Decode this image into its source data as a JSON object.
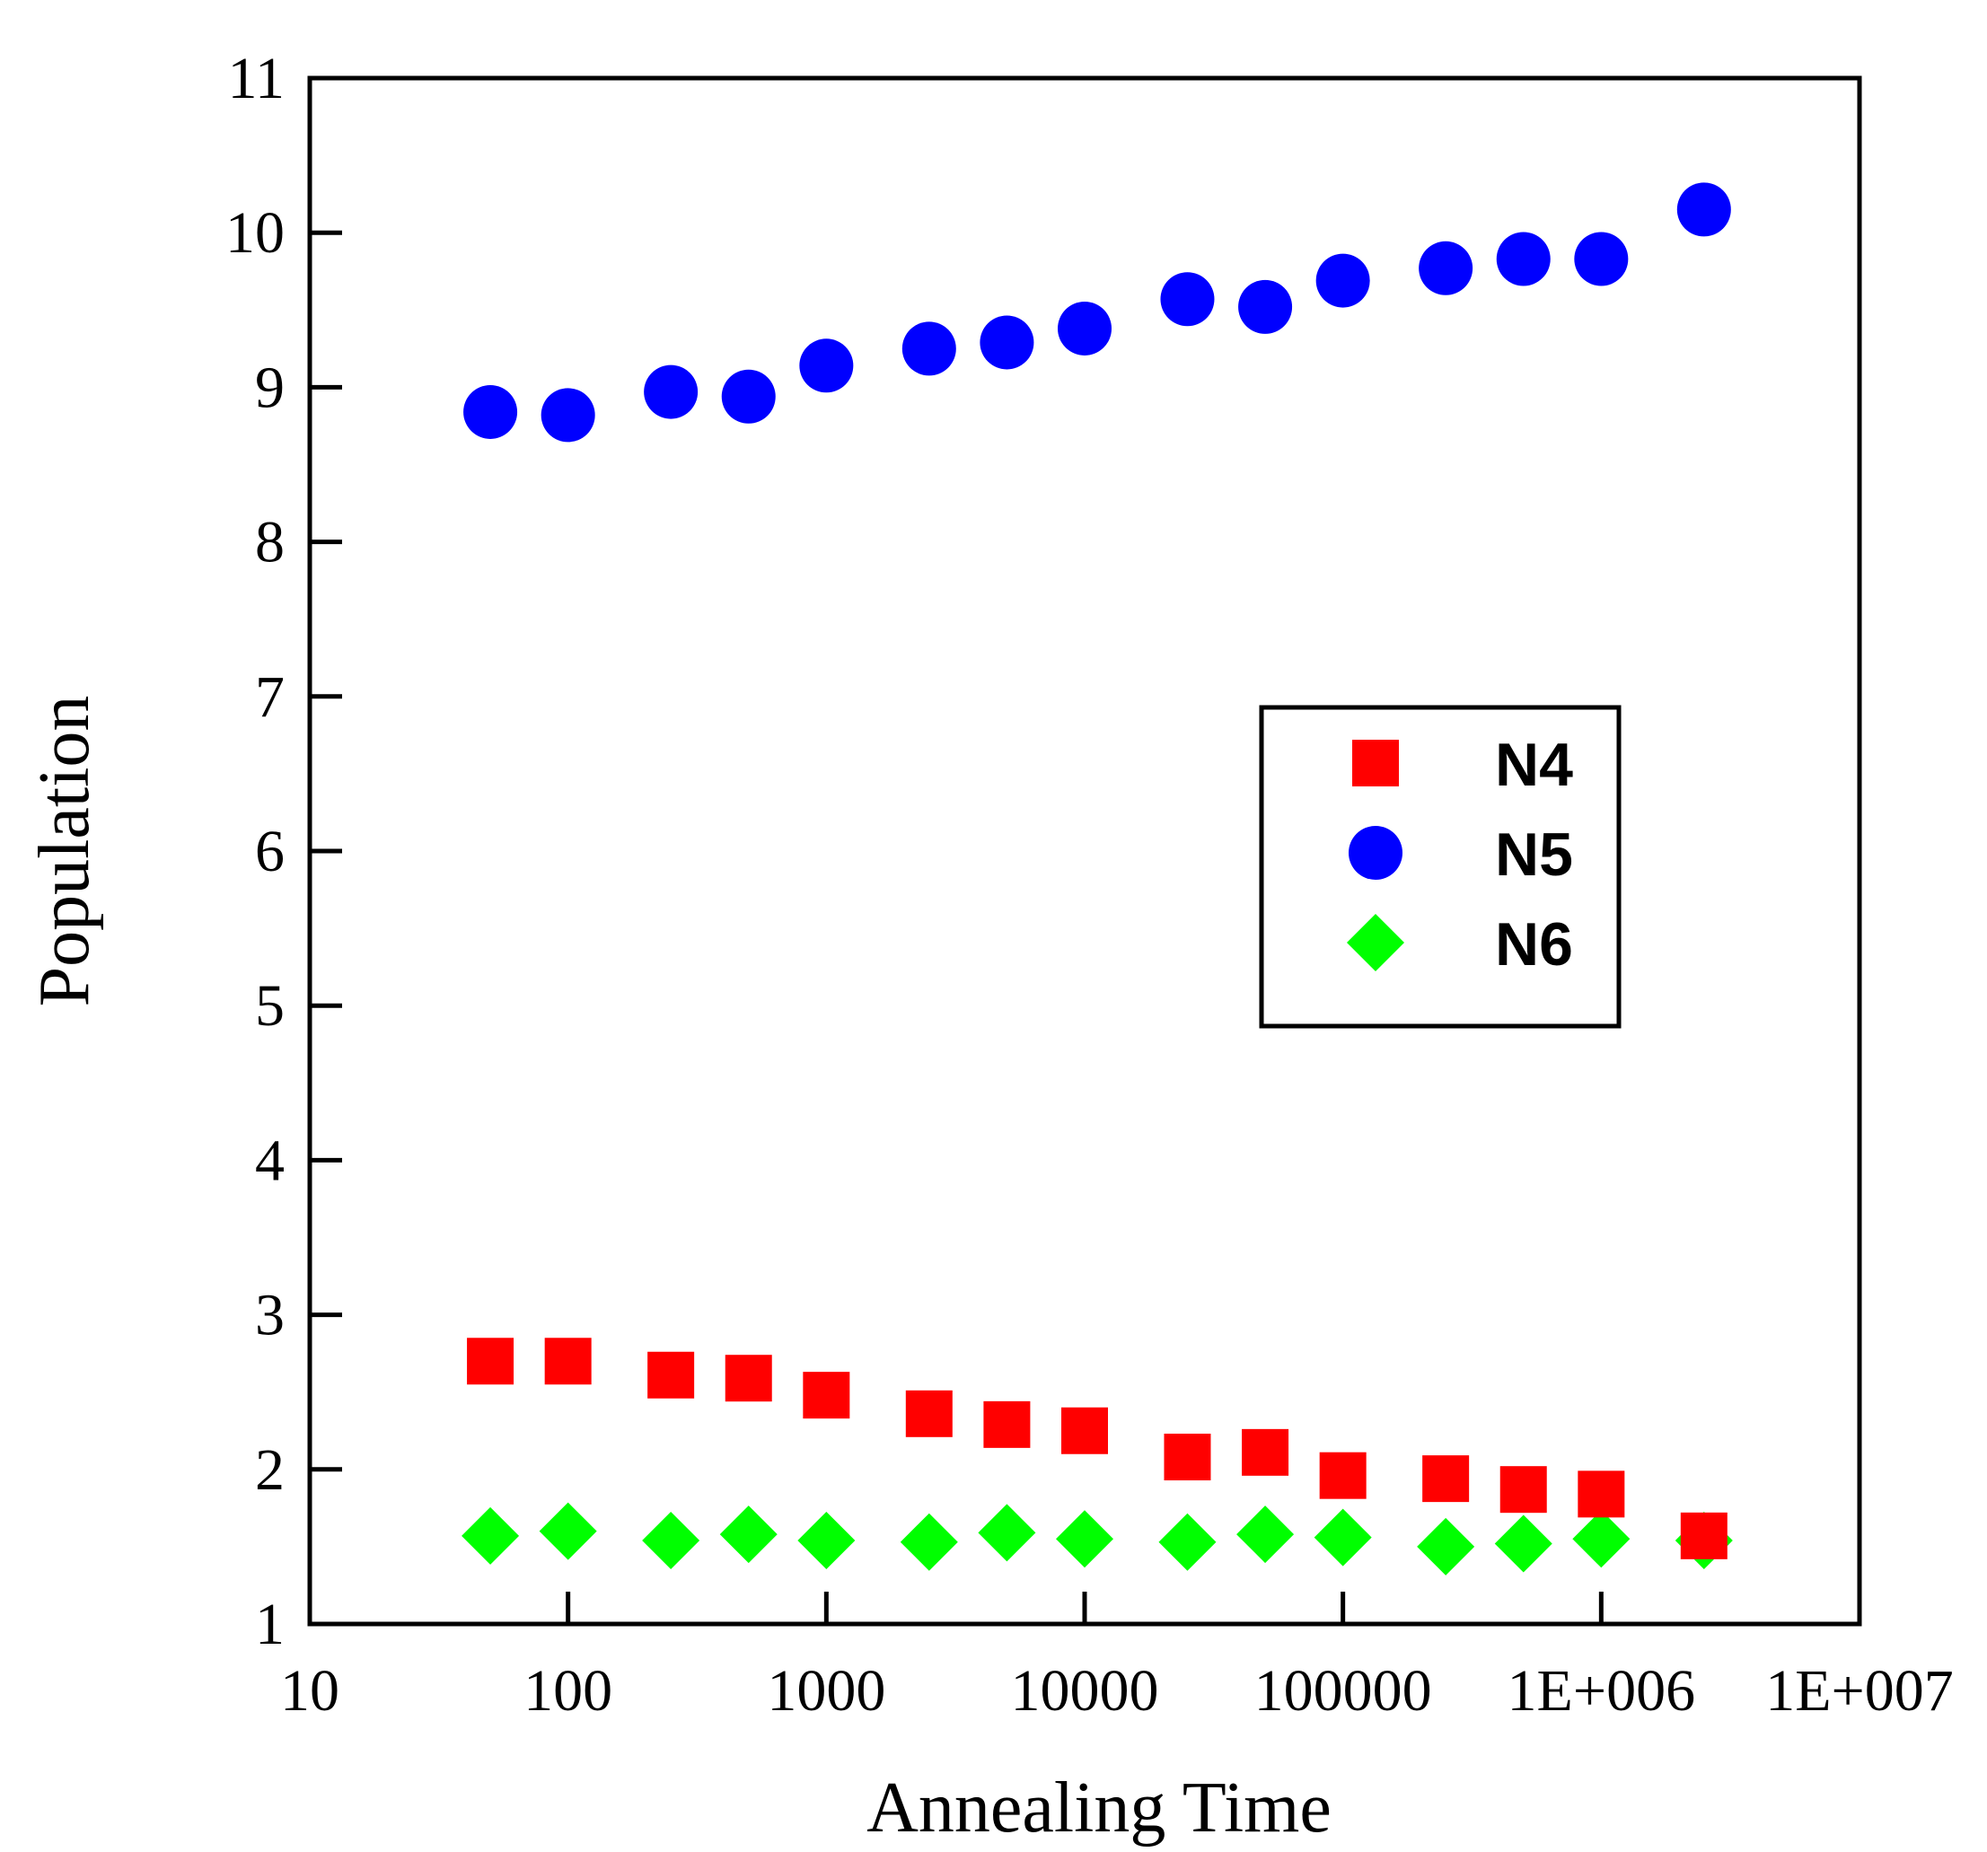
{
  "chart_data": {
    "type": "scatter",
    "title": "",
    "xlabel": "Annealing Time",
    "ylabel": "Population",
    "xscale": "log",
    "xlim": [
      10,
      10000000
    ],
    "ylim": [
      1,
      11
    ],
    "x_ticks": [
      10,
      100,
      1000,
      10000,
      100000,
      1000000,
      10000000
    ],
    "x_tick_labels": [
      "10",
      "100",
      "1000",
      "10000",
      "100000",
      "1E+006",
      "1E+007"
    ],
    "y_ticks": [
      1,
      2,
      3,
      4,
      5,
      6,
      7,
      8,
      9,
      10,
      11
    ],
    "y_tick_labels": [
      "1",
      "2",
      "3",
      "4",
      "5",
      "6",
      "7",
      "8",
      "9",
      "10",
      "11"
    ],
    "grid": false,
    "legend_position": "center-right",
    "x": [
      50,
      100,
      250,
      500,
      1000,
      2500,
      5000,
      10000,
      25000,
      50000,
      100000,
      250000,
      500000,
      1000000,
      2500000
    ],
    "series": [
      {
        "name": "N4",
        "marker": "square",
        "color": "#ff0000",
        "values": [
          2.7,
          2.7,
          2.61,
          2.59,
          2.48,
          2.36,
          2.29,
          2.25,
          2.08,
          2.11,
          1.96,
          1.94,
          1.87,
          1.84,
          1.57
        ]
      },
      {
        "name": "N5",
        "marker": "circle",
        "color": "#0000ff",
        "values": [
          8.84,
          8.82,
          8.97,
          8.94,
          9.14,
          9.25,
          9.29,
          9.38,
          9.57,
          9.52,
          9.69,
          9.77,
          9.83,
          9.83,
          10.15
        ]
      },
      {
        "name": "N6",
        "marker": "diamond",
        "color": "#00ff00",
        "values": [
          1.57,
          1.6,
          1.54,
          1.58,
          1.54,
          1.53,
          1.59,
          1.55,
          1.53,
          1.58,
          1.56,
          1.5,
          1.52,
          1.55,
          1.54
        ]
      }
    ]
  }
}
